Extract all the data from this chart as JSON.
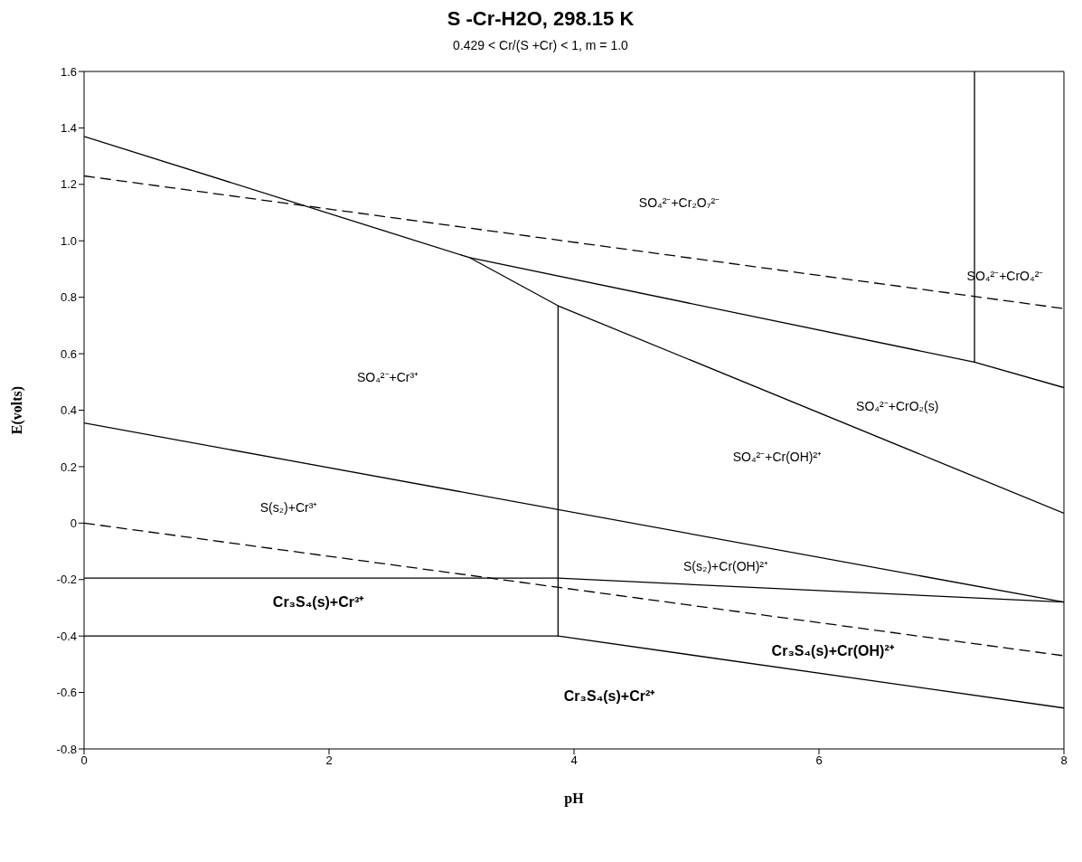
{
  "chart_data": {
    "type": "line",
    "title": "S -Cr-H2O, 298.15 K",
    "subtitle": "0.429 < Cr/(S +Cr) < 1, m = 1.0",
    "xlabel": "pH",
    "ylabel": "E(volts)",
    "xlim": [
      0,
      8
    ],
    "xticks": [
      0,
      2,
      4,
      6,
      8
    ],
    "ylim": [
      -0.8,
      1.6
    ],
    "yticks": [
      -0.8,
      -0.6,
      -0.4,
      -0.2,
      0,
      0.2,
      0.4,
      0.6,
      0.8,
      {
        "value": 1,
        "label": "1.0"
      },
      1.2,
      1.4,
      1.6
    ],
    "grid": false,
    "legend": false,
    "marker": "none",
    "series": [
      {
        "color": "#000000",
        "line_style": "solid",
        "x": [
          0,
          3.15,
          3.87,
          8
        ],
        "values": [
          1.37,
          0.94,
          0.77,
          0.035
        ]
      },
      {
        "color": "#000000",
        "line_style": "solid",
        "x": [
          3.15,
          7.27,
          8
        ],
        "values": [
          0.94,
          0.57,
          0.48
        ]
      },
      {
        "color": "#000000",
        "line_style": "solid",
        "x": [
          7.27,
          7.27
        ],
        "values": [
          0.57,
          1.6
        ]
      },
      {
        "color": "#000000",
        "line_style": "solid",
        "x": [
          3.87,
          3.87
        ],
        "values": [
          0.77,
          -0.4
        ]
      },
      {
        "color": "#000000",
        "line_style": "dashed",
        "x": [
          0,
          8
        ],
        "values": [
          1.23,
          0.76
        ]
      },
      {
        "color": "#000000",
        "line_style": "dashed",
        "x": [
          0,
          8
        ],
        "values": [
          0,
          -0.47
        ]
      },
      {
        "color": "#000000",
        "line_style": "solid",
        "x": [
          0,
          8
        ],
        "values": [
          0.355,
          -0.28
        ]
      },
      {
        "color": "#000000",
        "line_style": "solid",
        "x": [
          0,
          3.87,
          8
        ],
        "values": [
          -0.195,
          -0.195,
          -0.28
        ]
      },
      {
        "color": "#000000",
        "line_style": "solid",
        "x": [
          0,
          3.87,
          8
        ],
        "values": [
          -0.4,
          -0.4,
          -0.655
        ]
      }
    ],
    "annotations": [
      "SO₄²⁻+Cr₂O₇²⁻",
      "SO₄²⁻+CrO₄²⁻",
      "SO₄²⁻+Cr³⁺",
      "SO₄²⁻+CrO₂(s)",
      "SO₄²⁻+Cr(OH)²⁺",
      "S(s₂)+Cr³⁺",
      "S(s₂)+Cr(OH)²⁺",
      "Cr₃S₄(s)+Cr³⁺",
      "Cr₃S₄(s)+Cr(OH)²⁺",
      "Cr₃S₄(s)+Cr²⁺"
    ]
  }
}
